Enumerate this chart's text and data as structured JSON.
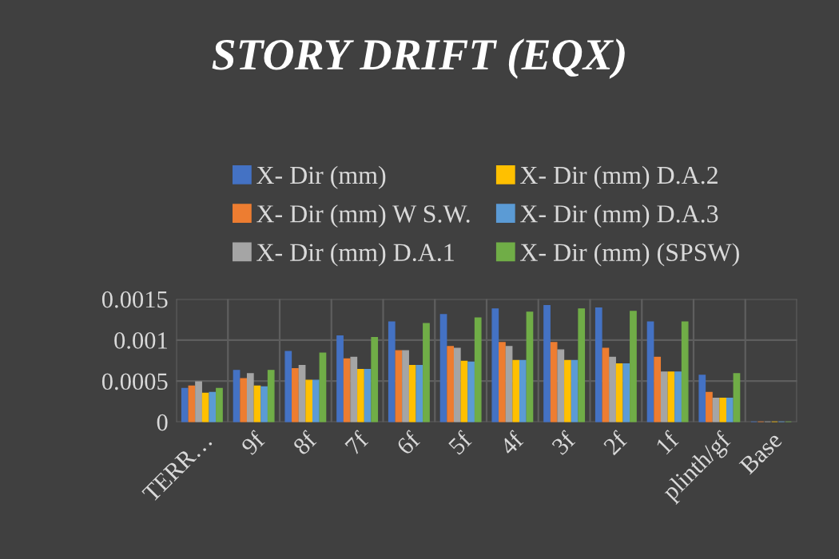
{
  "chart_data": {
    "type": "bar",
    "title": "STORY DRIFT (EQX)",
    "categories": [
      "TERR…",
      "9f",
      "8f",
      "7f",
      "6f",
      "5f",
      "4f",
      "3f",
      "2f",
      "1f",
      "plinth/gf",
      "Base"
    ],
    "series": [
      {
        "name": "X- Dir (mm)",
        "color": "#4472c4",
        "values": [
          0.00041,
          0.00063,
          0.00086,
          0.00105,
          0.00122,
          0.00131,
          0.00138,
          0.00142,
          0.00139,
          0.00122,
          0.00057,
          0
        ]
      },
      {
        "name": "X- Dir (mm) W S.W.",
        "color": "#ed7d31",
        "values": [
          0.00044,
          0.00053,
          0.00065,
          0.00077,
          0.00087,
          0.00092,
          0.00097,
          0.00097,
          0.0009,
          0.00079,
          0.00036,
          0
        ]
      },
      {
        "name": "X- Dir (mm) D.A.1",
        "color": "#a5a5a5",
        "values": [
          0.00049,
          0.00059,
          0.00069,
          0.00079,
          0.00087,
          0.0009,
          0.00092,
          0.00088,
          0.00079,
          0.00061,
          0.00029,
          0
        ]
      },
      {
        "name": "X- Dir (mm) D.A.2",
        "color": "#ffc000",
        "values": [
          0.00035,
          0.00044,
          0.00051,
          0.00064,
          0.00069,
          0.00074,
          0.00075,
          0.00075,
          0.00071,
          0.00061,
          0.00029,
          0
        ]
      },
      {
        "name": "X- Dir (mm) D.A.3",
        "color": "#5b9bd5",
        "values": [
          0.00036,
          0.00043,
          0.00051,
          0.00064,
          0.00069,
          0.00073,
          0.00075,
          0.00075,
          0.00071,
          0.00061,
          0.00029,
          0
        ]
      },
      {
        "name": "X- Dir (mm) (SPSW)",
        "color": "#70ad47",
        "values": [
          0.00041,
          0.00063,
          0.00084,
          0.00103,
          0.0012,
          0.00127,
          0.00134,
          0.00138,
          0.00135,
          0.00122,
          0.00059,
          0
        ]
      }
    ],
    "ylim": [
      0,
      0.0015
    ],
    "yticks": [
      0,
      {
        "value": 0.0005,
        "label": "0.0005"
      },
      {
        "value": 0.001,
        "label": "0.001"
      },
      {
        "value": 0.0015,
        "label": "0.0015"
      }
    ],
    "grid": true,
    "legend": "top"
  }
}
